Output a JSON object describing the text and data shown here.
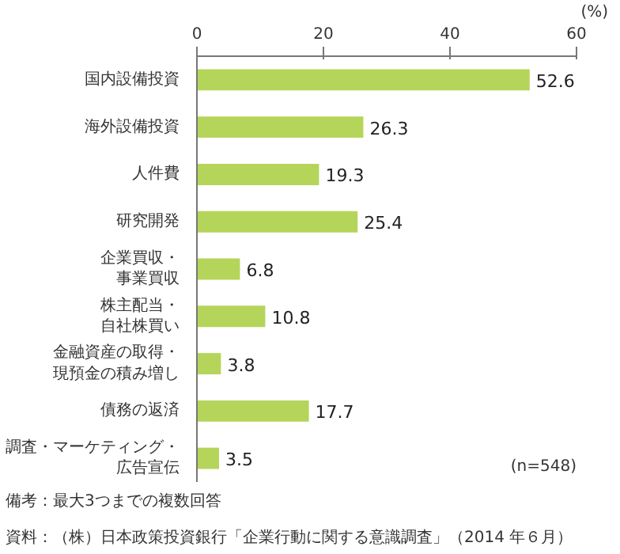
{
  "chart_data": {
    "type": "bar",
    "orientation": "horizontal",
    "categories": [
      "国内設備投資",
      "海外設備投資",
      "人件費",
      "研究開発",
      "企業買収・事業買収",
      "株主配当・自社株買い",
      "金融資産の取得・現預金の積み増し",
      "債務の返済",
      "調査・マーケティング・広告宣伝"
    ],
    "values": [
      52.6,
      26.3,
      19.3,
      25.4,
      6.8,
      10.8,
      3.8,
      17.7,
      3.5
    ],
    "color": "#b5d55a",
    "xlim": [
      0,
      60
    ],
    "xticks": [
      0,
      20,
      40,
      60
    ],
    "xlabel": "(%)",
    "data_labels": true,
    "grid": false,
    "annotations": [
      "(n=548)",
      "備考：最大3つまでの複数回答",
      "資料：（株）日本政策投資銀行「企業行動に関する意識調査」（2014 年６月）"
    ]
  }
}
